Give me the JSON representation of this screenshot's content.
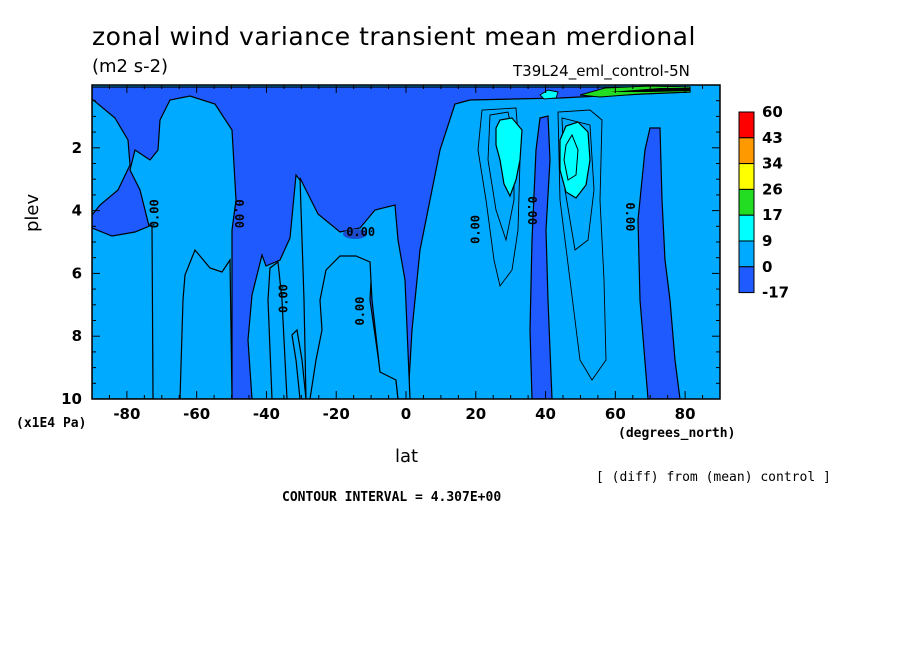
{
  "chart_data": {
    "type": "heatmap",
    "title": "zonal wind variance transient mean merdional",
    "units": "(m2 s-2)",
    "run_label": "T39L24_eml_control-5N",
    "xlabel": "lat",
    "ylabel": "plev",
    "x_units": "(degrees_north)",
    "y_units": "(x1E4 Pa)",
    "note": "[ (diff) from (mean) control ]",
    "contour_interval": "CONTOUR INTERVAL = 4.307E+00",
    "xlim": [
      -90,
      90
    ],
    "ylim": [
      10,
      0
    ],
    "x_ticks": [
      -80,
      -60,
      -40,
      -20,
      0,
      20,
      40,
      60,
      80
    ],
    "x_tick_labels": [
      "-80",
      "-60",
      "-40",
      "-20",
      "0",
      "20",
      "40",
      "60",
      "80"
    ],
    "y_ticks": [
      2,
      4,
      6,
      8,
      10
    ],
    "y_tick_labels": [
      "2",
      "4",
      "6",
      "8",
      "10"
    ],
    "colorbar": {
      "labels": [
        "60",
        "43",
        "34",
        "26",
        "17",
        "9",
        "0",
        "-17"
      ],
      "colors": [
        "#ff0000",
        "#ff9900",
        "#ffff00",
        "#22dd22",
        "#00ffff",
        "#00aaff",
        "#1f5aff"
      ]
    },
    "contour_labels": [
      {
        "text": "0.00",
        "lat": -72,
        "plev": 4.1,
        "rotate": -90
      },
      {
        "text": "0.00",
        "lat": -48,
        "plev": 4.1,
        "rotate": 90
      },
      {
        "text": "0.00",
        "lat": -35,
        "plev": 6.8,
        "rotate": -90
      },
      {
        "text": "0.00",
        "lat": -13,
        "plev": 4.7,
        "rotate": 0
      },
      {
        "text": "0.00",
        "lat": -13,
        "plev": 7.2,
        "rotate": -90
      },
      {
        "text": "0.00",
        "lat": 20,
        "plev": 4.6,
        "rotate": -90
      },
      {
        "text": "0.00",
        "lat": 36,
        "plev": 4.0,
        "rotate": 90
      },
      {
        "text": "0.00",
        "lat": 64,
        "plev": 4.2,
        "rotate": 90
      }
    ]
  }
}
